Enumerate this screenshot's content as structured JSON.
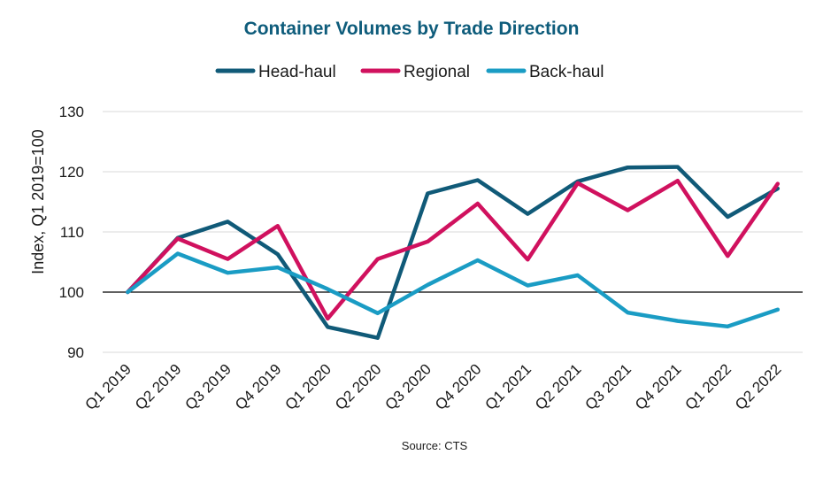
{
  "chart_data": {
    "type": "line",
    "title": "Container Volumes by Trade Direction",
    "title_color": "#0e5c7b",
    "xlabel": "",
    "ylabel": "Index, Q1 2019=100",
    "ylim": [
      90,
      130
    ],
    "yticks": [
      90,
      100,
      110,
      120,
      130
    ],
    "baseline": 100,
    "grid": true,
    "legend_position": "top-center",
    "source": "Source: CTS",
    "categories": [
      "Q1 2019",
      "Q2 2019",
      "Q3 2019",
      "Q4 2019",
      "Q1 2020",
      "Q2 2020",
      "Q3 2020",
      "Q4 2020",
      "Q1 2021",
      "Q2 2021",
      "Q3 2021",
      "Q4 2021",
      "Q1 2022",
      "Q2 2022"
    ],
    "series": [
      {
        "name": "Head-haul",
        "color": "#105a78",
        "values": [
          100,
          109,
          111.7,
          106.3,
          94.2,
          92.4,
          116.4,
          118.6,
          113.0,
          118.4,
          120.7,
          120.8,
          112.5,
          117.2
        ]
      },
      {
        "name": "Regional",
        "color": "#d0115e",
        "values": [
          100,
          108.9,
          105.5,
          111.0,
          95.6,
          105.5,
          108.4,
          114.7,
          105.4,
          118.1,
          113.6,
          118.5,
          106.0,
          118.0
        ]
      },
      {
        "name": "Back-haul",
        "color": "#1a9cc4",
        "values": [
          100,
          106.4,
          103.2,
          104.1,
          100.5,
          96.5,
          101.2,
          105.3,
          101.1,
          102.8,
          96.6,
          95.2,
          94.3,
          97.1
        ]
      }
    ]
  }
}
